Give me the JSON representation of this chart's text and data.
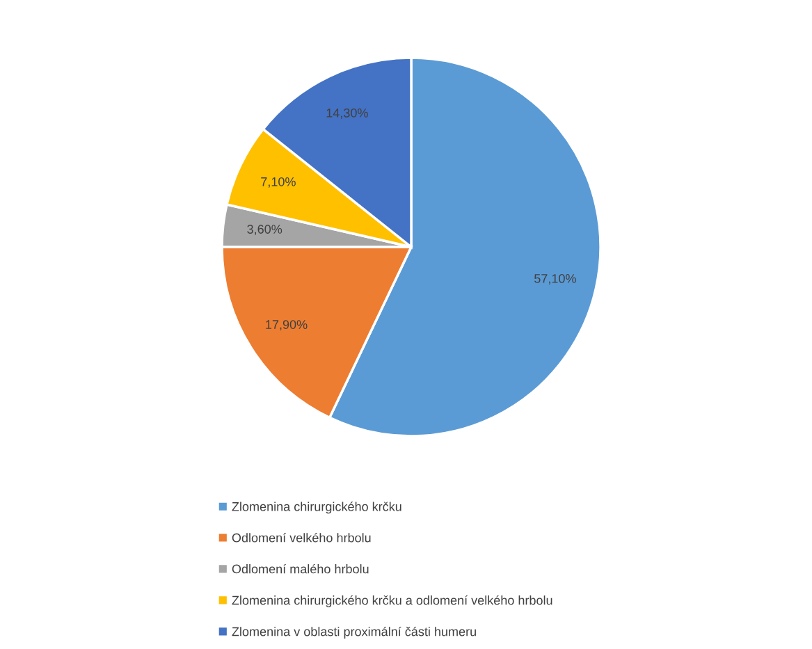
{
  "chart_data": {
    "type": "pie",
    "categories": [
      "Zlomenina chirurgického krčku",
      "Odlomení velkého hrbolu",
      "Odlomení malého hrbolu",
      "Zlomenina chirurgického krčku a odlomení velkého hrbolu",
      "Zlomenina v oblasti proximální části humeru"
    ],
    "values": [
      57.1,
      17.9,
      3.6,
      7.1,
      14.3
    ],
    "colors": [
      "#5b9bd5",
      "#ed7d31",
      "#a5a5a5",
      "#ffc000",
      "#4472c4"
    ],
    "value_labels": [
      "57,10%",
      "17,90%",
      "3,60%",
      "7,10%",
      "14,30%"
    ],
    "legend": "bottom"
  }
}
